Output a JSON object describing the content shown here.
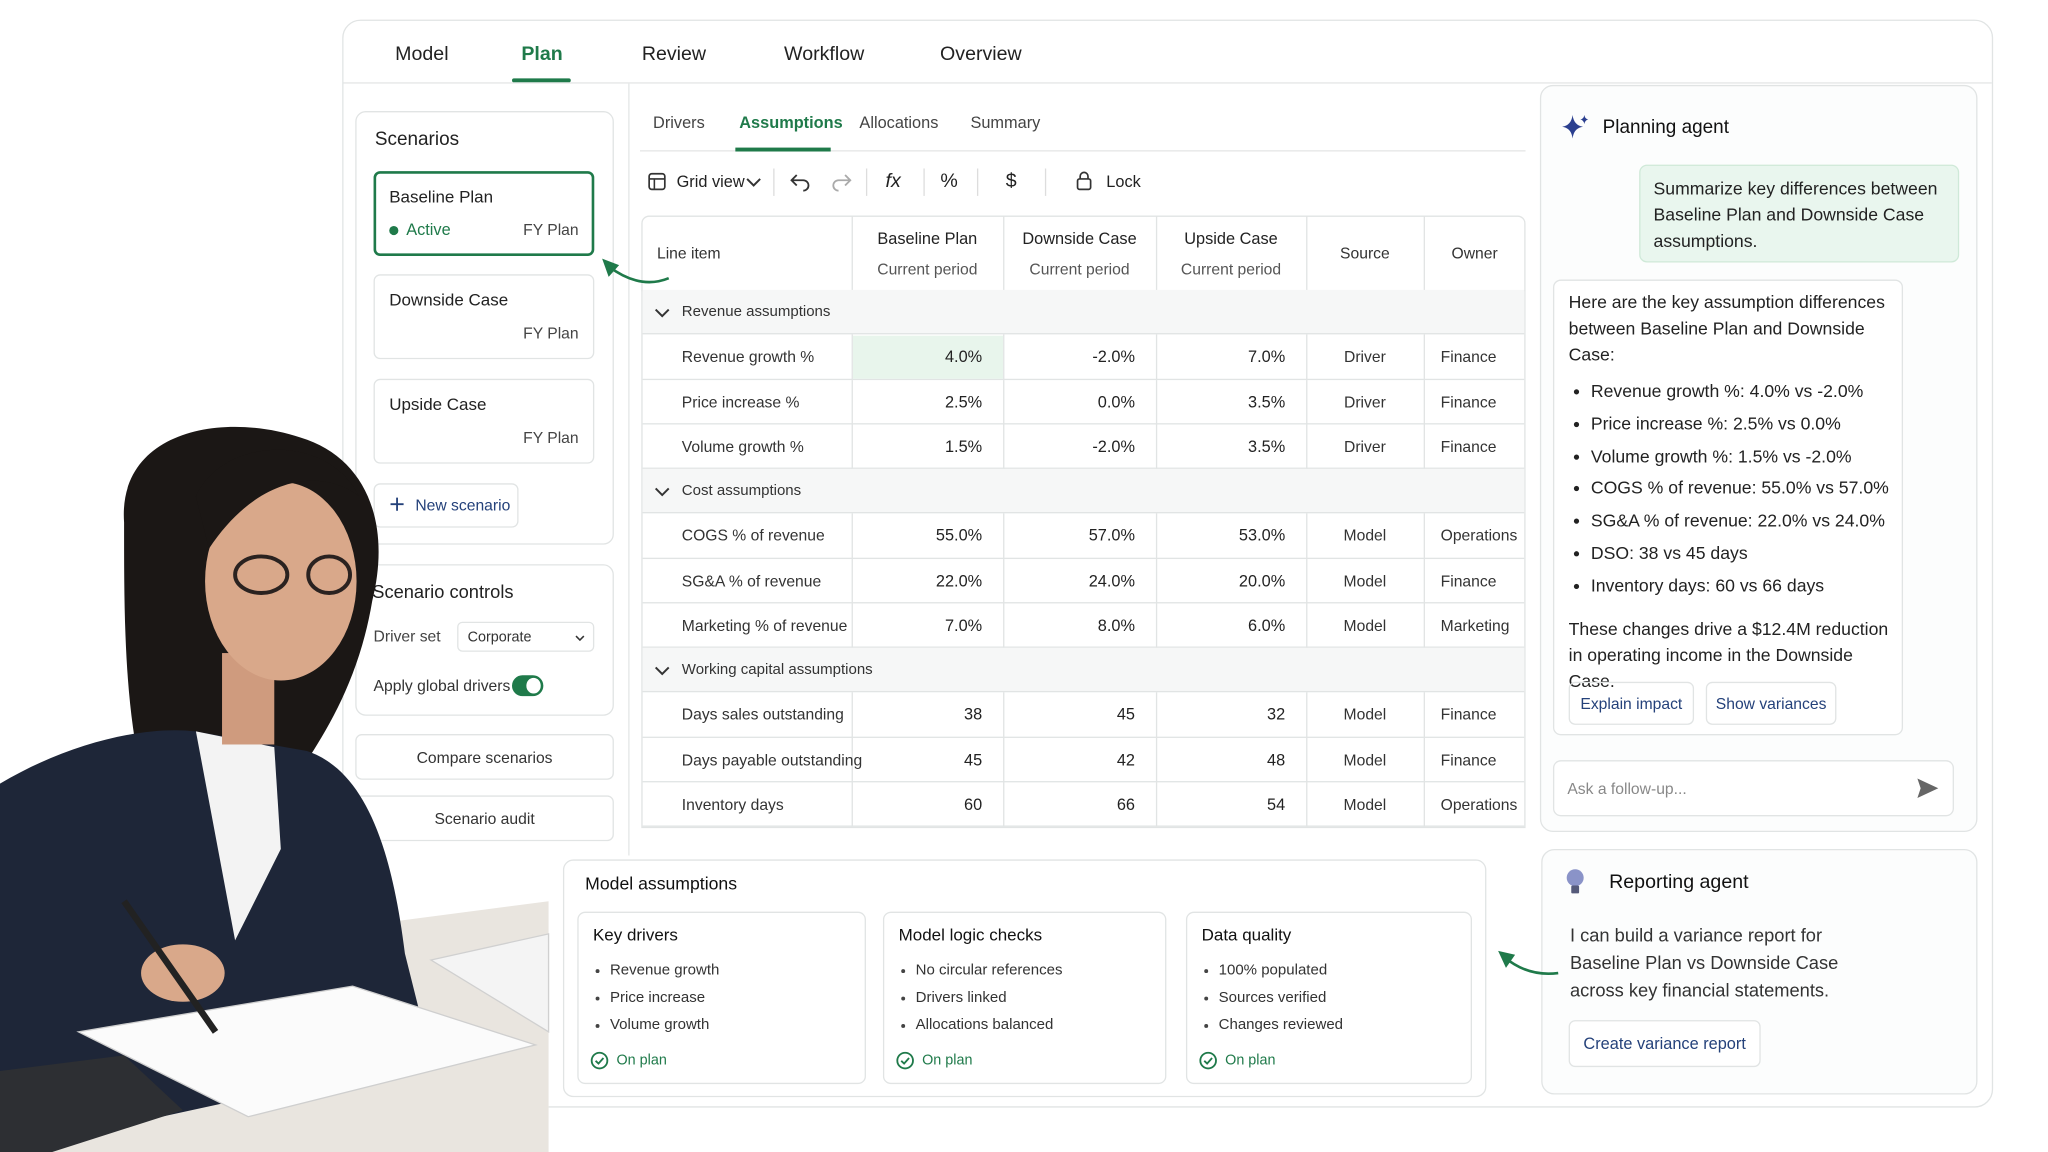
{
  "tabs": [
    "Model",
    "Plan",
    "Review",
    "Workflow",
    "Overview"
  ],
  "subtabs": [
    "Drivers",
    "Assumptions",
    "Allocations",
    "Summary"
  ],
  "toolbar": {
    "view": "Grid view",
    "formula": "fx",
    "percent": "%",
    "currency": "$",
    "lock": "Lock"
  },
  "scenarios": {
    "title": "Scenarios",
    "items": [
      {
        "name": "Baseline Plan",
        "status": "Active",
        "period": "FY Plan"
      },
      {
        "name": "Downside Case",
        "period": "FY Plan"
      },
      {
        "name": "Upside Case",
        "period": "FY Plan"
      }
    ],
    "new_button": "New scenario"
  },
  "controls": {
    "title": "Scenario controls",
    "driver_set_label": "Driver set",
    "driver_set_value": "Corporate",
    "apply_label": "Apply global drivers"
  },
  "buttons": [
    "Compare scenarios",
    "Scenario audit"
  ],
  "table": {
    "columns": [
      {
        "label": "Line item"
      },
      {
        "label": "Baseline Plan",
        "sublabel": "Current period"
      },
      {
        "label": "Downside Case",
        "sublabel": "Current period"
      },
      {
        "label": "Upside Case",
        "sublabel": "Current period"
      },
      {
        "label": "Source"
      },
      {
        "label": "Owner"
      }
    ],
    "groups": [
      {
        "name": "Revenue assumptions",
        "rows": [
          [
            "Revenue growth %",
            "4.0%",
            "-2.0%",
            "7.0%",
            "Driver",
            "Finance"
          ],
          [
            "Price increase %",
            "2.5%",
            "0.0%",
            "3.5%",
            "Driver",
            "Finance"
          ],
          [
            "Volume growth %",
            "1.5%",
            "-2.0%",
            "3.5%",
            "Driver",
            "Finance"
          ]
        ]
      },
      {
        "name": "Cost assumptions",
        "rows": [
          [
            "COGS % of revenue",
            "55.0%",
            "57.0%",
            "53.0%",
            "Model",
            "Operations"
          ],
          [
            "SG&A % of revenue",
            "22.0%",
            "24.0%",
            "20.0%",
            "Model",
            "Finance"
          ],
          [
            "Marketing % of revenue",
            "7.0%",
            "8.0%",
            "6.0%",
            "Model",
            "Marketing"
          ]
        ]
      },
      {
        "name": "Working capital assumptions",
        "rows": [
          [
            "Days sales outstanding",
            "38",
            "45",
            "32",
            "Model",
            "Finance"
          ],
          [
            "Days payable outstanding",
            "45",
            "42",
            "48",
            "Model",
            "Finance"
          ],
          [
            "Inventory days",
            "60",
            "66",
            "54",
            "Model",
            "Operations"
          ]
        ]
      }
    ]
  },
  "planning_agent": {
    "title": "Planning agent",
    "user_message": "Summarize key differences between Baseline Plan and Downside Case assumptions.",
    "intro": "Here are the key assumption differences between Baseline Plan and Downside Case:",
    "bullets": [
      "Revenue growth %: 4.0% vs -2.0%",
      "Price increase %: 2.5% vs 0.0%",
      "Volume growth %: 1.5% vs -2.0%",
      "COGS % of revenue: 55.0% vs 57.0%",
      "SG&A % of revenue: 22.0% vs 24.0%",
      "DSO: 38 vs 45 days",
      "Inventory days: 60 vs 66 days"
    ],
    "conclusion": "These changes drive a $12.4M reduction in operating income in the Downside Case.",
    "actions": [
      "Explain impact",
      "Show variances"
    ],
    "input_placeholder": "Ask a follow-up..."
  },
  "reporting_agent": {
    "title": "Reporting agent",
    "text": "I can build a variance report for Baseline Plan vs Downside Case across key financial statements.",
    "action": "Create variance report"
  },
  "model_assumptions": {
    "title": "Model assumptions",
    "cards": [
      {
        "title": "Key drivers",
        "items": [
          "Revenue growth",
          "Price increase",
          "Volume growth"
        ],
        "status": "On plan"
      },
      {
        "title": "Model logic checks",
        "items": [
          "No circular references",
          "Drivers linked",
          "Allocations balanced"
        ],
        "status": "On plan"
      },
      {
        "title": "Data quality",
        "items": [
          "100% populated",
          "Sources verified",
          "Changes reviewed"
        ],
        "status": "On plan"
      }
    ]
  }
}
